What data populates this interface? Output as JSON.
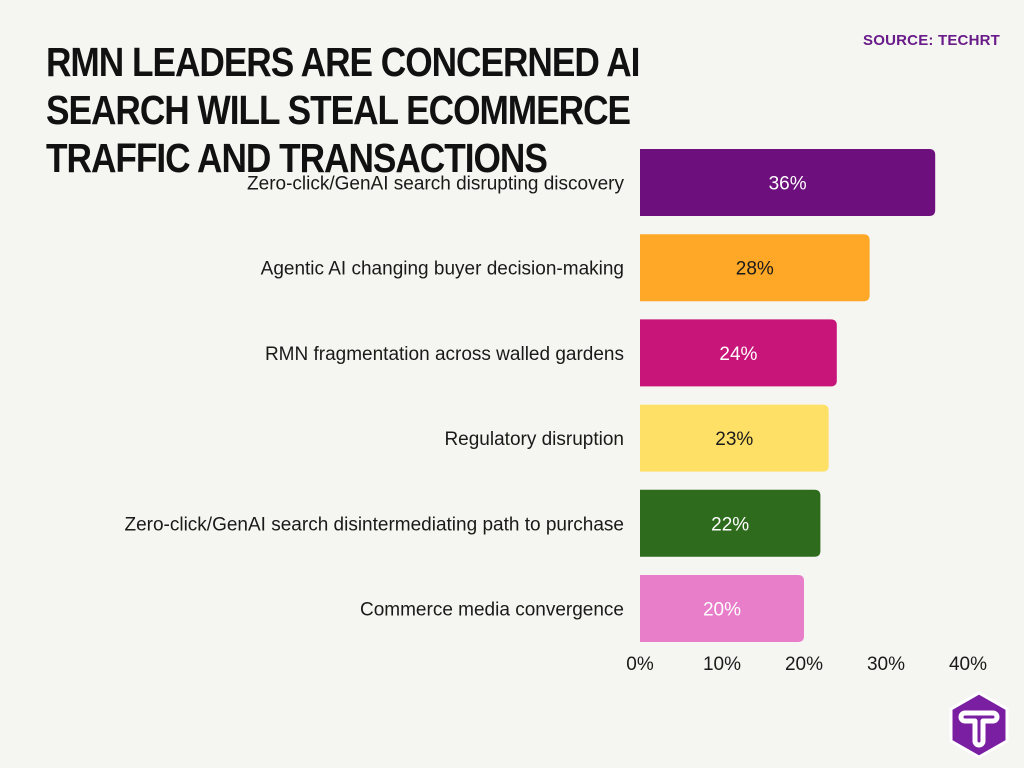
{
  "title": "RMN LEADERS ARE CONCERNED AI SEARCH WILL STEAL ECOMMERCE TRAFFIC AND TRANSACTIONS",
  "source": "SOURCE: TECHRT",
  "logo_icon": "techrt-logo-icon",
  "chart_data": {
    "type": "bar",
    "orientation": "horizontal",
    "title": "RMN LEADERS ARE CONCERNED AI SEARCH WILL STEAL ECOMMERCE TRAFFIC AND TRANSACTIONS",
    "categories": [
      "Zero-click/GenAI search disrupting discovery",
      "Agentic AI changing buyer decision-making",
      "RMN fragmentation across walled gardens",
      "Regulatory disruption",
      "Zero-click/GenAI search disintermediating path to purchase",
      "Commerce media convergence"
    ],
    "values": [
      36,
      28,
      24,
      23,
      22,
      20
    ],
    "data_labels": [
      "36%",
      "28%",
      "24%",
      "23%",
      "22%",
      "20%"
    ],
    "colors": [
      "#6e0f7e",
      "#ffa726",
      "#c8157a",
      "#ffe066",
      "#2e6b1d",
      "#e87dc9"
    ],
    "label_colors": [
      "#ffffff",
      "#1a1a1a",
      "#ffffff",
      "#1a1a1a",
      "#ffffff",
      "#ffffff"
    ],
    "xlim": [
      0,
      40
    ],
    "xticks": [
      0,
      10,
      20,
      30,
      40
    ],
    "xtick_labels": [
      "0%",
      "10%",
      "20%",
      "30%",
      "40%"
    ],
    "grid": false,
    "legend": "none"
  }
}
